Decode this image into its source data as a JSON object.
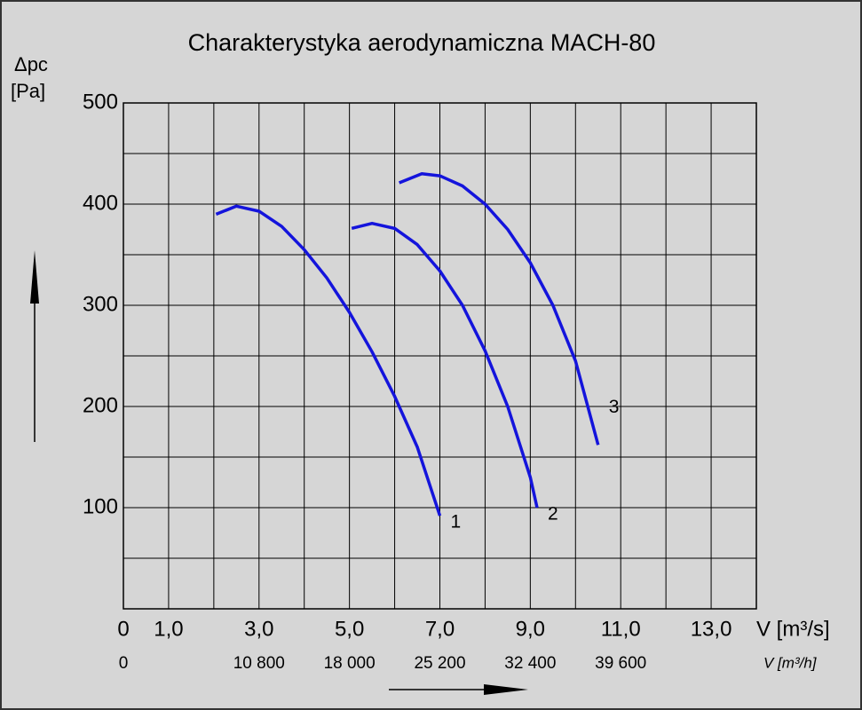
{
  "chart_data": {
    "type": "line",
    "title": "Charakterystyka aerodynamiczna MACH-80",
    "y_label_symbol": "Δpc",
    "y_label_unit": "[Pa]",
    "x_label": "V [m³/s]",
    "x2_label": "V [m³/h]",
    "xlim": [
      0,
      14
    ],
    "ylim": [
      0,
      500
    ],
    "xticks": [
      {
        "value": 0,
        "label": "0"
      },
      {
        "value": 1,
        "label": "1,0"
      },
      {
        "value": 3,
        "label": "3,0"
      },
      {
        "value": 5,
        "label": "5,0"
      },
      {
        "value": 7,
        "label": "7,0"
      },
      {
        "value": 9,
        "label": "9,0"
      },
      {
        "value": 11,
        "label": "11,0"
      },
      {
        "value": 13,
        "label": "13,0"
      }
    ],
    "xminor_ticks": [
      2,
      4,
      6,
      8,
      10,
      12,
      14
    ],
    "x2ticks": [
      {
        "value": 0,
        "label": "0"
      },
      {
        "value": 3,
        "label": "10 800"
      },
      {
        "value": 5,
        "label": "18 000"
      },
      {
        "value": 7,
        "label": "25 200"
      },
      {
        "value": 9,
        "label": "32 400"
      },
      {
        "value": 11,
        "label": "39 600"
      }
    ],
    "yticks": [
      100,
      200,
      300,
      400,
      500
    ],
    "yminor_ticks": [
      0,
      50,
      150,
      250,
      350,
      450
    ],
    "grid": true,
    "series": [
      {
        "name": "1",
        "color": "#1414dc",
        "x": [
          2.05,
          2.5,
          3.0,
          3.5,
          4.0,
          4.5,
          5.0,
          5.5,
          6.0,
          6.5,
          7.0
        ],
        "values": [
          390,
          398,
          393,
          378,
          355,
          327,
          293,
          254,
          210,
          160,
          92
        ]
      },
      {
        "name": "2",
        "color": "#1414dc",
        "x": [
          5.05,
          5.5,
          6.0,
          6.5,
          7.0,
          7.5,
          8.0,
          8.5,
          9.0,
          9.15
        ],
        "values": [
          376,
          381,
          376,
          360,
          334,
          300,
          255,
          200,
          130,
          100
        ]
      },
      {
        "name": "3",
        "color": "#1414dc",
        "x": [
          6.1,
          6.6,
          7.0,
          7.5,
          8.0,
          8.5,
          9.0,
          9.5,
          10.0,
          10.5
        ],
        "values": [
          421,
          430,
          428,
          418,
          400,
          375,
          342,
          300,
          245,
          162
        ]
      }
    ]
  }
}
